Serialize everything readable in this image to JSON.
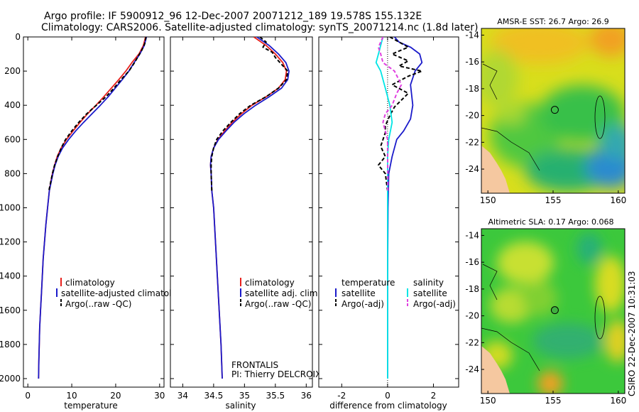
{
  "header": {
    "line1": "Argo profile: IF 5900912_96 12-Dec-2007 20071212_189 19.578S 155.132E",
    "line2": "Climatology: CARS2006. Satellite-adjusted climatology: synTS_20071214.nc (1.8d later)"
  },
  "side_label": "CSIRO 22-Dec-2007 10:31:03",
  "chart_data": [
    {
      "type": "line",
      "id": "temperature",
      "xlabel": "temperature",
      "ylabel": "",
      "xlim": [
        -1,
        31
      ],
      "ylim": [
        2050,
        0
      ],
      "xticks": [
        0,
        10,
        20,
        30
      ],
      "yticks": [
        0,
        200,
        400,
        600,
        800,
        1000,
        1200,
        1400,
        1600,
        1800,
        2000
      ],
      "legend": [
        "climatology",
        "satellite-adjusted climatology",
        "Argo(..raw -QC)"
      ],
      "series": [
        {
          "name": "climatology",
          "color": "#e8201c",
          "dash": false,
          "points": [
            [
              26.8,
              0
            ],
            [
              26.3,
              50
            ],
            [
              25.3,
              100
            ],
            [
              23.7,
              150
            ],
            [
              22.3,
              200
            ],
            [
              20.7,
              250
            ],
            [
              19.0,
              300
            ],
            [
              17.3,
              350
            ],
            [
              15.5,
              400
            ],
            [
              13.6,
              450
            ],
            [
              11.9,
              500
            ],
            [
              10.3,
              550
            ],
            [
              8.8,
              600
            ],
            [
              7.6,
              650
            ],
            [
              6.7,
              700
            ],
            [
              6.1,
              750
            ],
            [
              5.6,
              800
            ],
            [
              5.2,
              850
            ],
            [
              4.9,
              900
            ],
            [
              4.5,
              1000
            ],
            [
              4.1,
              1100
            ],
            [
              3.8,
              1200
            ],
            [
              3.5,
              1300
            ],
            [
              3.3,
              1400
            ],
            [
              3.1,
              1500
            ],
            [
              2.9,
              1600
            ],
            [
              2.7,
              1700
            ],
            [
              2.6,
              1800
            ],
            [
              2.5,
              1900
            ],
            [
              2.45,
              2000
            ]
          ]
        },
        {
          "name": "satellite-adjusted climatology",
          "color": "#1a1aca",
          "dash": false,
          "points": [
            [
              27.0,
              0
            ],
            [
              26.5,
              50
            ],
            [
              25.5,
              100
            ],
            [
              24.2,
              150
            ],
            [
              23.0,
              200
            ],
            [
              21.5,
              250
            ],
            [
              19.9,
              300
            ],
            [
              18.3,
              350
            ],
            [
              16.5,
              400
            ],
            [
              14.6,
              450
            ],
            [
              12.7,
              500
            ],
            [
              10.9,
              550
            ],
            [
              9.3,
              600
            ],
            [
              7.9,
              650
            ],
            [
              6.9,
              700
            ],
            [
              6.2,
              750
            ],
            [
              5.7,
              800
            ],
            [
              5.3,
              850
            ],
            [
              4.9,
              900
            ],
            [
              4.5,
              1000
            ],
            [
              4.1,
              1100
            ],
            [
              3.8,
              1200
            ],
            [
              3.5,
              1300
            ],
            [
              3.3,
              1400
            ],
            [
              3.1,
              1500
            ],
            [
              2.9,
              1600
            ],
            [
              2.7,
              1700
            ],
            [
              2.6,
              1800
            ],
            [
              2.5,
              1900
            ],
            [
              2.45,
              2000
            ]
          ]
        },
        {
          "name": "Argo(..raw -QC)",
          "color": "#000000",
          "dash": true,
          "points": [
            [
              26.9,
              0
            ],
            [
              26.6,
              40
            ],
            [
              25.9,
              80
            ],
            [
              24.3,
              150
            ],
            [
              23.0,
              200
            ],
            [
              21.2,
              250
            ],
            [
              19.6,
              300
            ],
            [
              17.8,
              350
            ],
            [
              15.6,
              400
            ],
            [
              13.4,
              450
            ],
            [
              11.6,
              500
            ],
            [
              10.0,
              550
            ],
            [
              8.6,
              600
            ],
            [
              7.6,
              650
            ],
            [
              6.8,
              700
            ],
            [
              6.1,
              750
            ],
            [
              5.6,
              800
            ],
            [
              5.2,
              850
            ],
            [
              4.8,
              900
            ]
          ]
        }
      ]
    },
    {
      "type": "line",
      "id": "salinity",
      "xlabel": "salinity",
      "ylabel": "",
      "xlim": [
        33.8,
        36.1
      ],
      "ylim": [
        2050,
        0
      ],
      "xticks": [
        34,
        34.5,
        35,
        35.5,
        36
      ],
      "legend": [
        "climatology",
        "satellite adj. clim.",
        "Argo(..raw -QC)"
      ],
      "annotation": [
        "FRONTALIS",
        "PI: Thierry DELCROIX"
      ],
      "series": [
        {
          "name": "climatology",
          "color": "#e8201c",
          "dash": false,
          "points": [
            [
              35.15,
              0
            ],
            [
              35.35,
              50
            ],
            [
              35.5,
              100
            ],
            [
              35.62,
              150
            ],
            [
              35.68,
              200
            ],
            [
              35.66,
              250
            ],
            [
              35.55,
              300
            ],
            [
              35.35,
              350
            ],
            [
              35.12,
              400
            ],
            [
              34.95,
              450
            ],
            [
              34.8,
              500
            ],
            [
              34.68,
              550
            ],
            [
              34.57,
              600
            ],
            [
              34.5,
              650
            ],
            [
              34.46,
              700
            ],
            [
              34.45,
              750
            ],
            [
              34.46,
              800
            ],
            [
              34.47,
              900
            ],
            [
              34.5,
              1000
            ],
            [
              34.53,
              1200
            ],
            [
              34.56,
              1400
            ],
            [
              34.59,
              1600
            ],
            [
              34.62,
              1800
            ],
            [
              34.64,
              2000
            ]
          ]
        },
        {
          "name": "satellite adj. clim.",
          "color": "#1a1aca",
          "dash": false,
          "points": [
            [
              35.2,
              0
            ],
            [
              35.4,
              50
            ],
            [
              35.55,
              100
            ],
            [
              35.67,
              150
            ],
            [
              35.72,
              200
            ],
            [
              35.7,
              250
            ],
            [
              35.6,
              300
            ],
            [
              35.4,
              350
            ],
            [
              35.18,
              400
            ],
            [
              34.99,
              450
            ],
            [
              34.83,
              500
            ],
            [
              34.7,
              550
            ],
            [
              34.58,
              600
            ],
            [
              34.5,
              650
            ],
            [
              34.46,
              700
            ],
            [
              34.45,
              750
            ],
            [
              34.46,
              800
            ],
            [
              34.47,
              900
            ],
            [
              34.5,
              1000
            ],
            [
              34.53,
              1200
            ],
            [
              34.56,
              1400
            ],
            [
              34.59,
              1600
            ],
            [
              34.62,
              1800
            ],
            [
              34.64,
              2000
            ]
          ]
        },
        {
          "name": "Argo(..raw -QC)",
          "color": "#000000",
          "dash": true,
          "points": [
            [
              35.25,
              0
            ],
            [
              35.35,
              30
            ],
            [
              35.3,
              60
            ],
            [
              35.45,
              90
            ],
            [
              35.5,
              120
            ],
            [
              35.6,
              160
            ],
            [
              35.7,
              200
            ],
            [
              35.68,
              250
            ],
            [
              35.55,
              300
            ],
            [
              35.35,
              350
            ],
            [
              35.1,
              400
            ],
            [
              34.92,
              450
            ],
            [
              34.78,
              500
            ],
            [
              34.65,
              550
            ],
            [
              34.55,
              600
            ],
            [
              34.5,
              650
            ],
            [
              34.47,
              700
            ],
            [
              34.46,
              750
            ],
            [
              34.46,
              800
            ],
            [
              34.47,
              900
            ]
          ]
        }
      ]
    },
    {
      "type": "line",
      "id": "difference",
      "xlabel": "difference from climatology",
      "ylabel": "",
      "xlim": [
        -3,
        3.1
      ],
      "ylim": [
        2050,
        0
      ],
      "xticks": [
        -2,
        0,
        2
      ],
      "legend_groups": [
        {
          "title": "temperature",
          "items": [
            "satellite",
            "Argo(-adj)"
          ]
        },
        {
          "title": "salinity",
          "items": [
            "satellite",
            "Argo(-adj)"
          ]
        }
      ],
      "series": [
        {
          "name": "temperature satellite",
          "color": "#1a1aca",
          "dash": false,
          "points": [
            [
              0.3,
              0
            ],
            [
              0.5,
              30
            ],
            [
              1.0,
              60
            ],
            [
              1.4,
              100
            ],
            [
              1.5,
              150
            ],
            [
              1.2,
              200
            ],
            [
              1.0,
              280
            ],
            [
              1.1,
              400
            ],
            [
              1.0,
              480
            ],
            [
              0.7,
              550
            ],
            [
              0.4,
              600
            ],
            [
              0.2,
              700
            ],
            [
              0.05,
              800
            ],
            [
              0.02,
              1000
            ],
            [
              0,
              1400
            ],
            [
              0,
              2000
            ]
          ]
        },
        {
          "name": "temperature Argo(-adj)",
          "color": "#000000",
          "dash": true,
          "points": [
            [
              0.1,
              0
            ],
            [
              0.9,
              60
            ],
            [
              0.2,
              100
            ],
            [
              0.9,
              140
            ],
            [
              0.5,
              170
            ],
            [
              1.5,
              200
            ],
            [
              0.9,
              230
            ],
            [
              0.2,
              280
            ],
            [
              0.9,
              330
            ],
            [
              0.6,
              370
            ],
            [
              0.3,
              410
            ],
            [
              0.1,
              460
            ],
            [
              -0.1,
              520
            ],
            [
              -0.1,
              560
            ],
            [
              -0.3,
              640
            ],
            [
              -0.1,
              700
            ],
            [
              -0.4,
              750
            ],
            [
              -0.1,
              800
            ],
            [
              0,
              900
            ]
          ]
        },
        {
          "name": "salinity satellite",
          "color": "#00e5e5",
          "dash": false,
          "points": [
            [
              -0.2,
              0
            ],
            [
              -0.3,
              50
            ],
            [
              -0.4,
              100
            ],
            [
              -0.5,
              150
            ],
            [
              -0.3,
              200
            ],
            [
              -0.1,
              300
            ],
            [
              0.1,
              400
            ],
            [
              0.2,
              500
            ],
            [
              0.05,
              600
            ],
            [
              0,
              700
            ],
            [
              0,
              2000
            ]
          ]
        },
        {
          "name": "salinity Argo(-adj)",
          "color": "#e040e0",
          "dash": true,
          "points": [
            [
              -0.2,
              0
            ],
            [
              -0.3,
              30
            ],
            [
              -0.4,
              60
            ],
            [
              -0.3,
              100
            ],
            [
              -0.2,
              150
            ],
            [
              0.3,
              200
            ],
            [
              0.6,
              280
            ],
            [
              0.4,
              330
            ],
            [
              0.2,
              400
            ],
            [
              -0.1,
              450
            ],
            [
              -0.2,
              500
            ],
            [
              -0.1,
              550
            ],
            [
              0,
              600
            ],
            [
              0,
              650
            ],
            [
              0,
              700
            ],
            [
              0.01,
              800
            ],
            [
              0.01,
              900
            ]
          ]
        }
      ]
    },
    {
      "type": "heatmap",
      "id": "sst-map",
      "title": "AMSR-E SST: 26.7 Argo: 26.9",
      "xlim": [
        149.5,
        160.5
      ],
      "ylim": [
        -25.8,
        -13.5
      ],
      "xticks": [
        150,
        155,
        160
      ],
      "yticks": [
        -14,
        -16,
        -18,
        -20,
        -22,
        -24
      ],
      "argo_position": [
        155.132,
        -19.578
      ]
    },
    {
      "type": "heatmap",
      "id": "sla-map",
      "title": "Altimetric SLA: 0.17 Argo: 0.068",
      "xlim": [
        149.5,
        160.5
      ],
      "ylim": [
        -25.8,
        -13.5
      ],
      "xticks": [
        150,
        155,
        160
      ],
      "yticks": [
        -14,
        -16,
        -18,
        -20,
        -22,
        -24
      ],
      "argo_position": [
        155.132,
        -19.578
      ]
    }
  ]
}
